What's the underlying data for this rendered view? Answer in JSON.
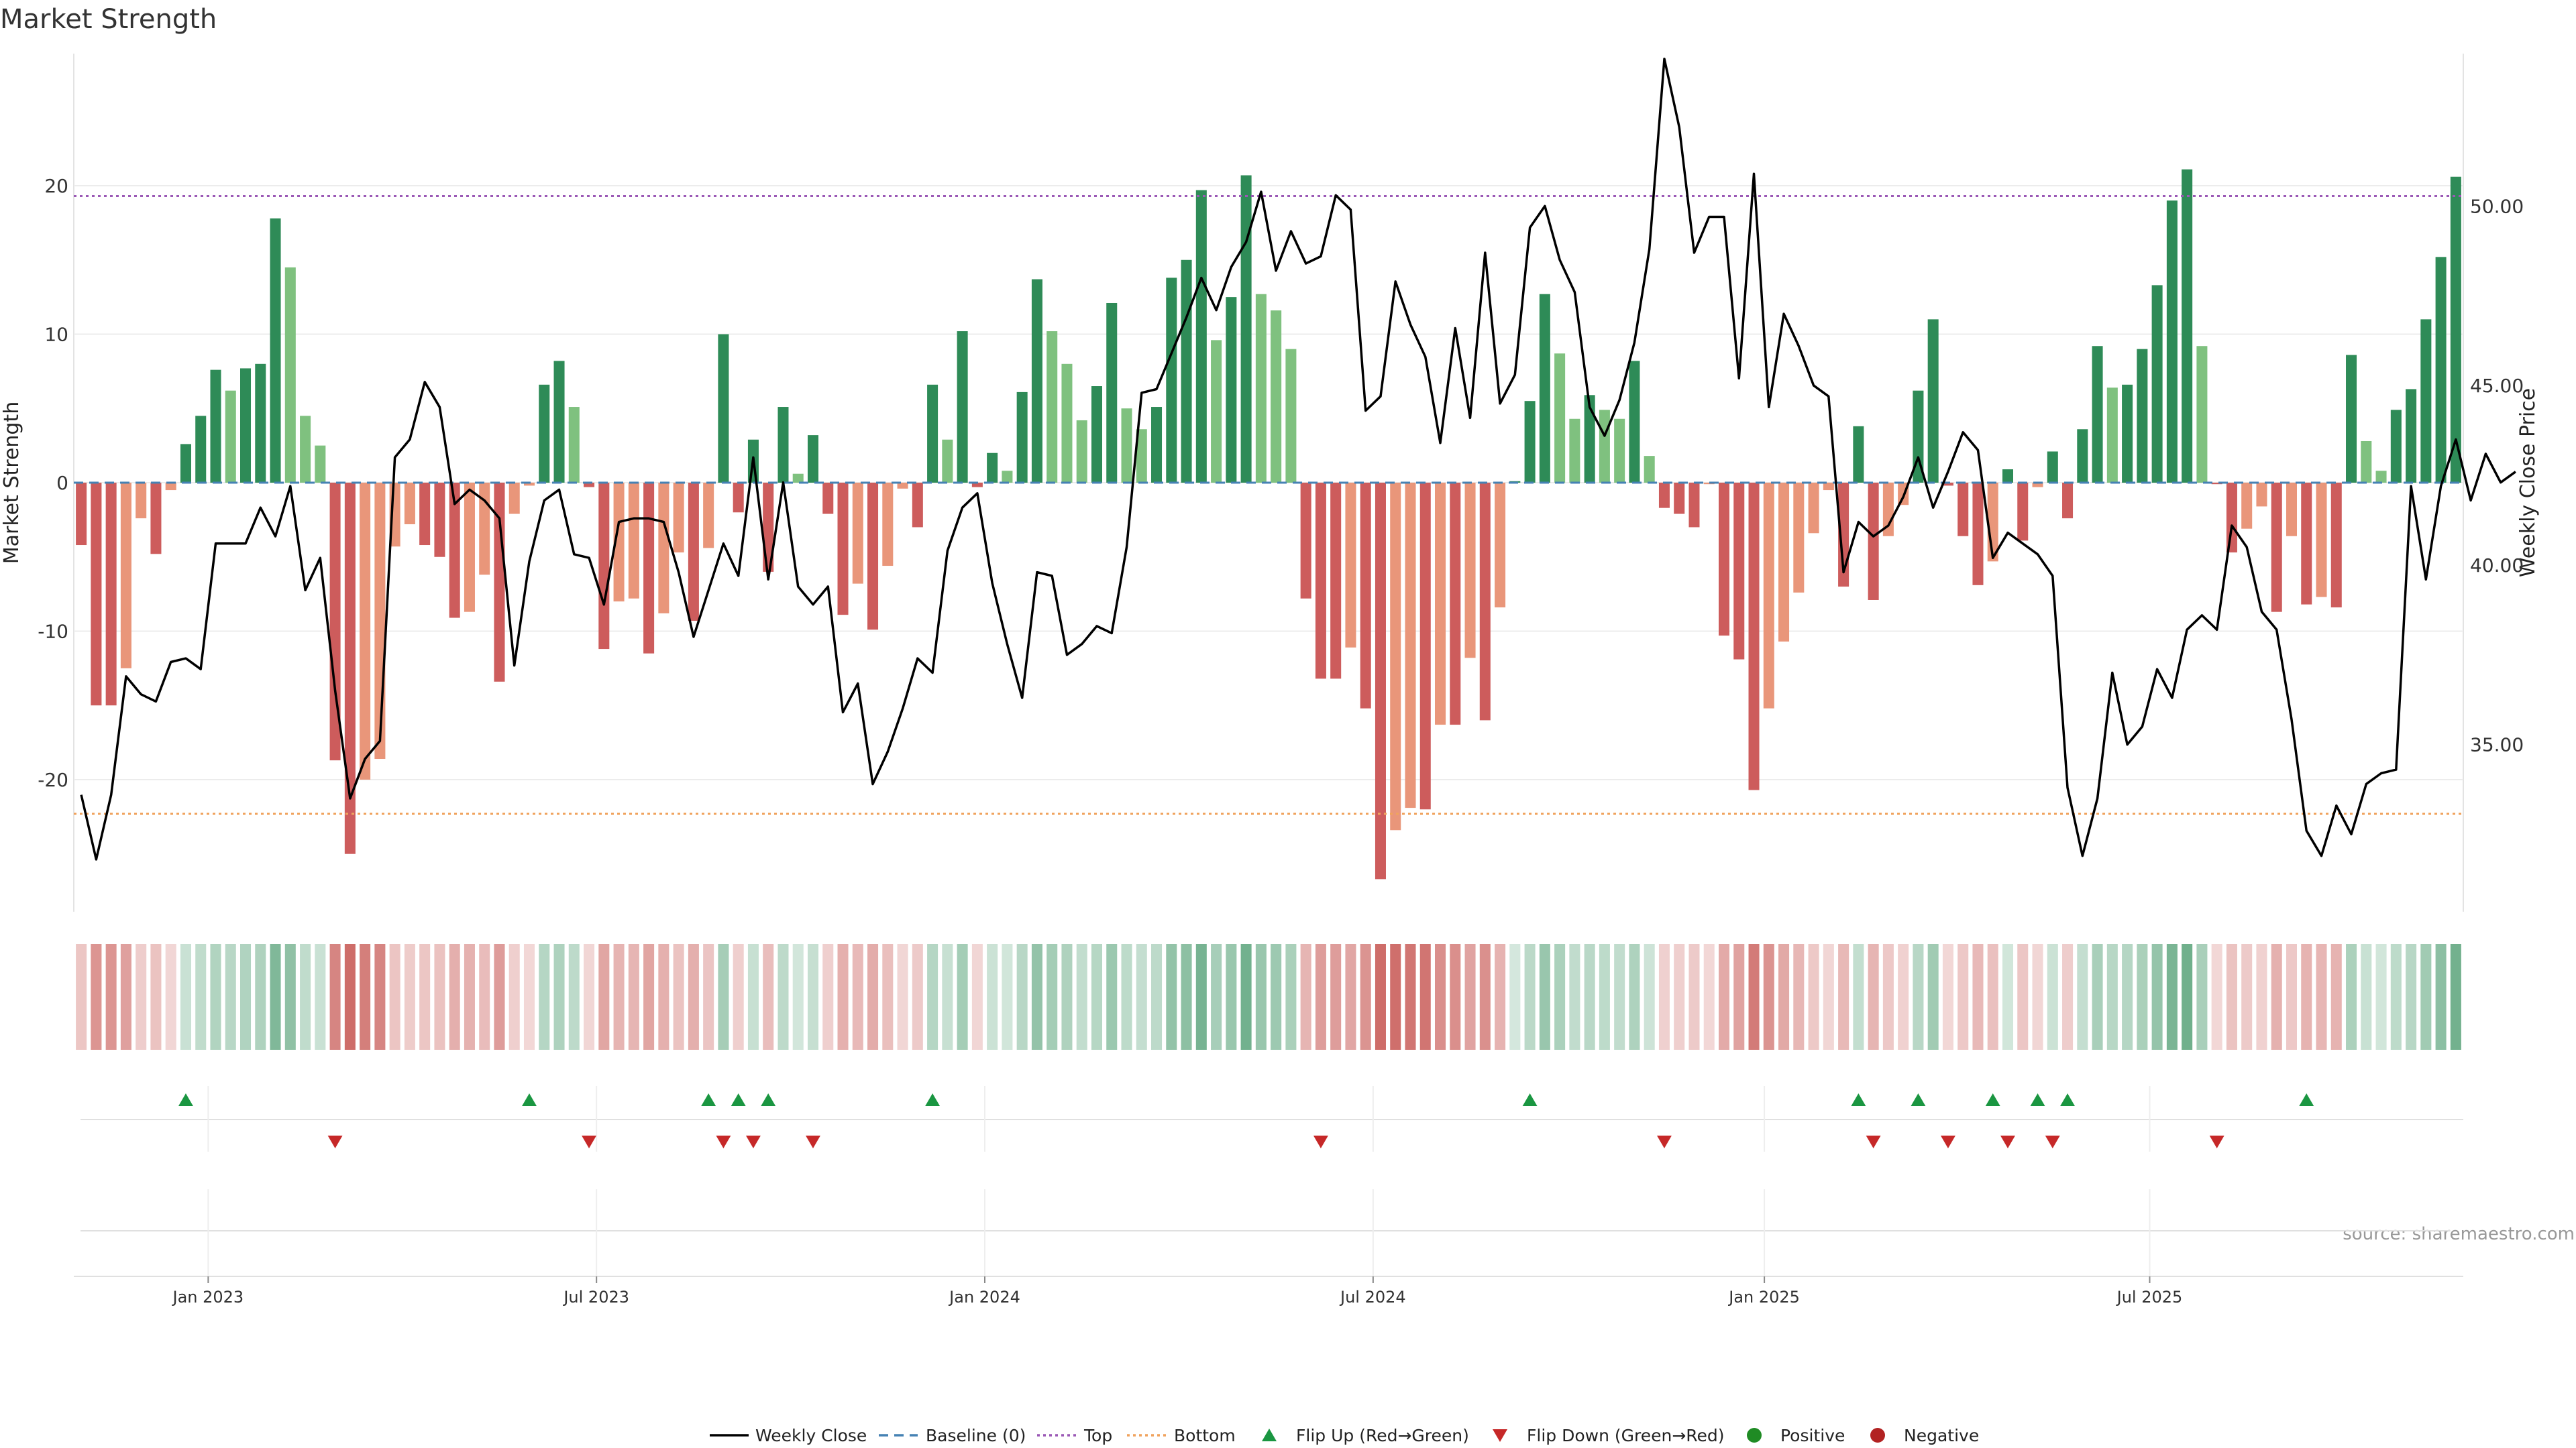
{
  "chart_data": {
    "type": "bar",
    "title": "Market Strength",
    "ylabel": "Market Strength",
    "y2label": "Weekly Close Price",
    "ylim": [
      -29,
      29
    ],
    "y2lim": [
      30.8,
      54.1
    ],
    "y_ticks": [
      {
        "v": 20,
        "label": "20"
      },
      {
        "v": 10,
        "label": "10"
      },
      {
        "v": 0,
        "label": "0"
      },
      {
        "v": -10,
        "label": "-10"
      },
      {
        "v": -20,
        "label": "-20"
      }
    ],
    "y2_ticks": [
      {
        "v": 50,
        "label": "50.00"
      },
      {
        "v": 45,
        "label": "45.00"
      },
      {
        "v": 40,
        "label": "40.00"
      },
      {
        "v": 35,
        "label": "35.00"
      }
    ],
    "x_ticks": [
      {
        "week": 8.5,
        "label": "Jan 2023"
      },
      {
        "week": 34.5,
        "label": "Jul 2023"
      },
      {
        "week": 60.5,
        "label": "Jan 2024"
      },
      {
        "week": 86.5,
        "label": "Jul 2024"
      },
      {
        "week": 112.7,
        "label": "Jan 2025"
      },
      {
        "week": 138.5,
        "label": "Jul 2025"
      }
    ],
    "top_level": 19.3,
    "bottom_level": -22.3,
    "baseline": 0,
    "strength": [
      -4.2,
      -15,
      -15,
      -12.5,
      -2.4,
      -4.8,
      -0.5,
      2.6,
      4.5,
      7.6,
      6.2,
      7.7,
      8,
      17.8,
      14.5,
      4.5,
      2.5,
      -18.7,
      -25,
      -20,
      -18.6,
      -4.3,
      -2.8,
      -4.2,
      -5,
      -9.1,
      -8.7,
      -6.2,
      -13.4,
      -2.1,
      -0.2,
      6.6,
      8.2,
      5.1,
      -0.3,
      -11.2,
      -8,
      -7.8,
      -11.5,
      -8.8,
      -4.7,
      -9.3,
      -4.4,
      10,
      -2,
      2.9,
      -6,
      5.1,
      0.6,
      3.2,
      -2.1,
      -8.9,
      -6.8,
      -9.9,
      -5.6,
      -0.4,
      -3,
      6.6,
      2.9,
      10.2,
      -0.3,
      2,
      0.8,
      6.1,
      13.7,
      10.2,
      8,
      4.2,
      6.5,
      12.1,
      5,
      3.6,
      5.1,
      13.8,
      15,
      19.7,
      9.6,
      12.5,
      20.7,
      12.7,
      11.6,
      9,
      -7.8,
      -13.2,
      -13.2,
      -11.1,
      -15.2,
      -26.7,
      -23.4,
      -21.9,
      -22,
      -16.3,
      -16.3,
      -11.8,
      -16,
      -8.4,
      0.1,
      5.5,
      12.7,
      8.7,
      4.3,
      5.9,
      4.9,
      4.3,
      8.2,
      1.8,
      -1.7,
      -2.1,
      -3,
      -0.1,
      -10.3,
      -11.9,
      -20.7,
      -15.2,
      -10.7,
      -7.4,
      -3.4,
      -0.5,
      -7,
      3.8,
      -7.9,
      -3.6,
      -1.5,
      6.2,
      11,
      -0.2,
      -3.6,
      -6.9,
      -5.3,
      0.9,
      -3.9,
      -0.3,
      2.1,
      -2.4,
      3.6,
      9.2,
      6.4,
      6.6,
      9,
      13.3,
      19,
      21.1,
      9.2,
      -0.1,
      -4.7,
      -3.1,
      -1.6,
      -8.7,
      -3.6,
      -8.2,
      -7.7,
      -8.4,
      8.6,
      2.8,
      0.8,
      4.9,
      6.3,
      11,
      15.2,
      20.6
    ],
    "weekly_close": [
      33.6,
      31.8,
      33.6,
      36.9,
      36.4,
      36.2,
      37.3,
      37.4,
      37.1,
      40.6,
      40.6,
      40.6,
      41.6,
      40.8,
      42.2,
      39.3,
      40.2,
      36.5,
      33.5,
      34.6,
      35.1,
      43,
      43.5,
      45.1,
      44.4,
      41.7,
      42.1,
      41.8,
      41.3,
      37.2,
      40.1,
      41.8,
      42.1,
      40.3,
      40.2,
      38.9,
      41.2,
      41.3,
      41.3,
      41.2,
      39.8,
      38,
      39.3,
      40.6,
      39.7,
      43,
      39.6,
      42.3,
      39.4,
      38.9,
      39.4,
      35.9,
      36.7,
      33.9,
      34.8,
      36,
      37.4,
      37,
      40.4,
      41.6,
      42,
      39.5,
      37.8,
      36.3,
      39.8,
      39.7,
      37.5,
      37.8,
      38.3,
      38.1,
      40.5,
      44.8,
      44.9,
      45.9,
      46.9,
      48,
      47.1,
      48.3,
      49,
      50.4,
      48.2,
      49.3,
      48.4,
      48.6,
      50.3,
      49.9,
      44.3,
      44.7,
      47.9,
      46.7,
      45.8,
      43.4,
      46.6,
      44.1,
      48.7,
      44.5,
      45.3,
      49.4,
      50,
      48.5,
      47.6,
      44.4,
      43.6,
      44.6,
      46.2,
      48.8,
      54.1,
      52.2,
      48.7,
      49.7,
      49.7,
      45.2,
      50.9,
      44.4,
      47,
      46.1,
      45,
      44.7,
      39.8,
      41.2,
      40.8,
      41.1,
      41.9,
      43,
      41.6,
      42.6,
      43.7,
      43.2,
      40.2,
      40.9,
      40.6,
      40.3,
      39.7,
      33.8,
      31.9,
      33.5,
      37,
      35,
      35.5,
      37.1,
      36.3,
      38.2,
      38.6,
      38.2,
      41.1,
      40.5,
      38.7,
      38.2,
      35.7,
      32.6,
      31.9,
      33.3,
      32.5,
      33.9,
      34.2,
      34.3,
      42.2,
      39.6,
      42.2,
      43.5,
      41.8,
      43.1,
      42.3,
      42.6
    ],
    "flip_up_weeks": [
      7,
      30,
      42,
      44,
      46,
      57,
      97,
      119,
      123,
      128,
      131,
      133,
      149
    ],
    "flip_down_weeks": [
      17,
      34,
      43,
      45,
      49,
      83,
      106,
      120,
      125,
      129,
      132,
      143
    ],
    "legend": [
      {
        "key": "line",
        "label": "Weekly Close"
      },
      {
        "key": "baseline",
        "label": "Baseline (0)"
      },
      {
        "key": "top",
        "label": "Top"
      },
      {
        "key": "bottom",
        "label": "Bottom"
      },
      {
        "key": "flipup",
        "label": "Flip Up (Red→Green)"
      },
      {
        "key": "flipdown",
        "label": "Flip Down (Green→Red)"
      },
      {
        "key": "pos",
        "label": "Positive"
      },
      {
        "key": "neg",
        "label": "Negative"
      }
    ],
    "source": "source: sharemaestro.com"
  },
  "colors": {
    "green_dark": "#2e8b57",
    "green_light": "#7fc17f",
    "red_dark": "#cd5c5c",
    "red_light": "#e9967a",
    "line": "#000000",
    "baseline": "#4682b4",
    "top": "#9b59b6",
    "bottom": "#f0a35e",
    "flip_up": "#1a9641",
    "flip_down": "#c62828",
    "positive": "#1f8b24",
    "negative": "#b22222"
  }
}
